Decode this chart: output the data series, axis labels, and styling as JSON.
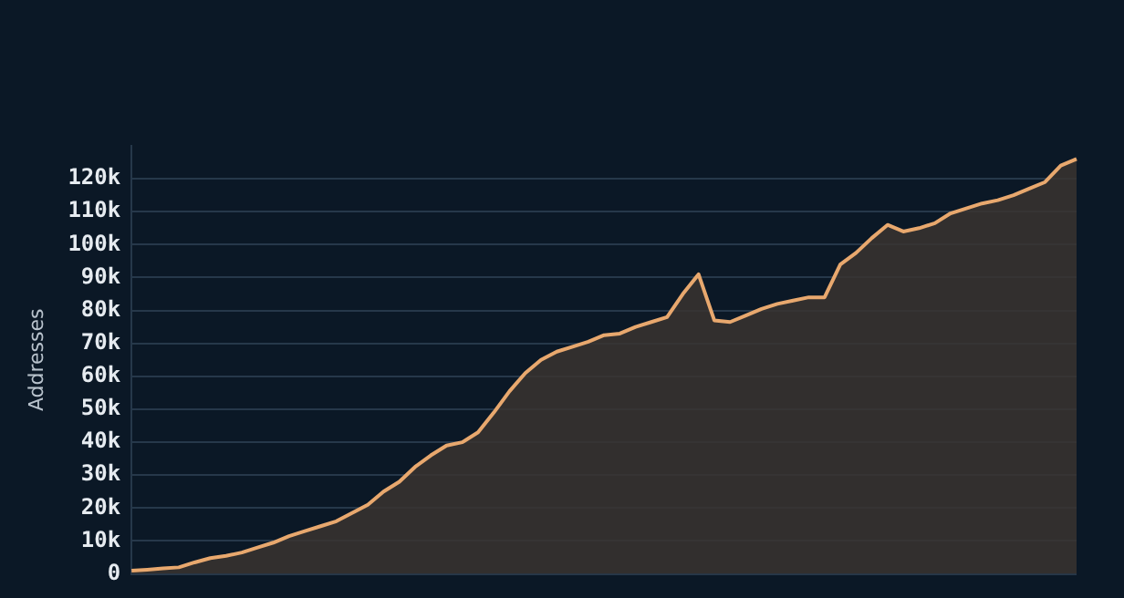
{
  "chart_data": {
    "type": "area",
    "ylabel": "Addresses",
    "categories": [
      null,
      null,
      null,
      null,
      null,
      null,
      null,
      null,
      null,
      null,
      null,
      null,
      null,
      null,
      null,
      null,
      null,
      null,
      null,
      null,
      null,
      null,
      null,
      null,
      null,
      null,
      null,
      null,
      null,
      null,
      null,
      null,
      null,
      null,
      null,
      null,
      null,
      null,
      null,
      null,
      null,
      null,
      null,
      null,
      null,
      null,
      null,
      null,
      null,
      null,
      null,
      null,
      null,
      null,
      null,
      null,
      null,
      null,
      null,
      null,
      null
    ],
    "series": [
      {
        "color": "#e8a86e",
        "values": [
          1000,
          1300,
          1700,
          2000,
          3500,
          4800,
          5500,
          6500,
          8000,
          9500,
          11500,
          13000,
          14500,
          16000,
          18500,
          21000,
          25000,
          28000,
          32500,
          36000,
          39000,
          40000,
          43000,
          49000,
          55500,
          61000,
          65000,
          67500,
          69000,
          70500,
          72500,
          73000,
          75000,
          76500,
          78000,
          85000,
          91000,
          77000,
          76500,
          78500,
          80500,
          82000,
          83000,
          84000,
          84000,
          94000,
          97500,
          102000,
          106000,
          104000,
          105000,
          106500,
          109500,
          111000,
          112500,
          113500,
          115000,
          117000,
          119000,
          124000,
          126000
        ]
      }
    ],
    "ylim": [
      0,
      130000
    ],
    "yticks": [
      0,
      {
        "value": 10000,
        "label": "10k"
      },
      {
        "value": 20000,
        "label": "20k"
      },
      {
        "value": 30000,
        "label": "30k"
      },
      {
        "value": 40000,
        "label": "40k"
      },
      {
        "value": 50000,
        "label": "50k"
      },
      {
        "value": 60000,
        "label": "60k"
      },
      {
        "value": 70000,
        "label": "70k"
      },
      {
        "value": 80000,
        "label": "80k"
      },
      {
        "value": 90000,
        "label": "90k"
      },
      {
        "value": 100000,
        "label": "100k"
      },
      {
        "value": 110000,
        "label": "110k"
      },
      {
        "value": 120000,
        "label": "120k"
      }
    ],
    "grid": "y",
    "tick_labels": "y",
    "legend": false,
    "marker": "none"
  }
}
